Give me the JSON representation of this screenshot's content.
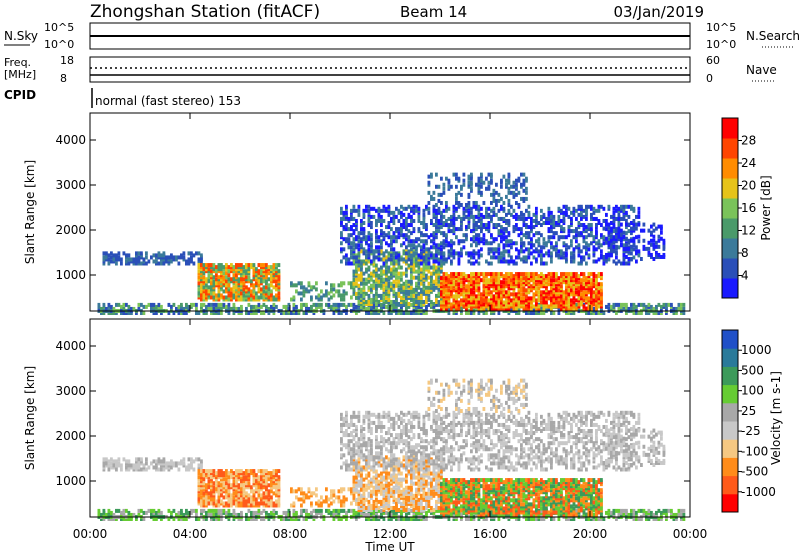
{
  "header": {
    "station": "Zhongshan Station (fitACF)",
    "beam": "Beam 14",
    "date": "03/Jan/2019"
  },
  "top_panels": {
    "nsky_label": "N.Sky",
    "nsky_ticks": [
      "10^5",
      "10^0"
    ],
    "nsearch_label": "N.Search",
    "nsearch_ticks": [
      "10^5",
      "10^0"
    ],
    "freq_label_1": "Freq.",
    "freq_label_2": "[MHz]",
    "freq_ticks": [
      "18",
      "8"
    ],
    "nave_label": "Nave",
    "nave_ticks": [
      "60",
      "0"
    ],
    "cpid_label": "CPID",
    "cpid_text": "normal (fast stereo) 153"
  },
  "colors": {
    "power_scale": [
      "#1a1aff",
      "#2a4fb8",
      "#3b7a9a",
      "#4a9a6a",
      "#7ac35a",
      "#e6c31a",
      "#ff8c00",
      "#ff4500",
      "#ff0000"
    ],
    "velocity_scale": [
      "#ff0000",
      "#ff5a1a",
      "#ff8c1a",
      "#f5c882",
      "#c8c8c8",
      "#a8a8a8",
      "#66cc33",
      "#3c9a5a",
      "#2a7a9a",
      "#2050c8"
    ]
  },
  "chart_data": [
    {
      "type": "heatmap",
      "name": "power",
      "ylabel": "Slant Range [km]",
      "yticks": [
        "1000",
        "2000",
        "3000",
        "4000"
      ],
      "ylim": [
        200,
        4600
      ],
      "colorbar_label": "Power [dB]",
      "colorbar_ticks": [
        "4",
        "8",
        "12",
        "16",
        "20",
        "24",
        "28"
      ],
      "colorbar_range": [
        0,
        30
      ]
    },
    {
      "type": "heatmap",
      "name": "velocity",
      "ylabel": "Slant Range [km]",
      "yticks": [
        "1000",
        "2000",
        "3000",
        "4000"
      ],
      "ylim": [
        200,
        4600
      ],
      "colorbar_label": "Velocity [m s-1]",
      "colorbar_ticks": [
        "1000",
        "500",
        "100",
        "25",
        "-25",
        "-100",
        "-500",
        "-1000"
      ]
    }
  ],
  "time_axis": {
    "xlabel": "Time UT",
    "xticks": [
      "00:00",
      "04:00",
      "08:00",
      "12:00",
      "16:00",
      "20:00",
      "00:00"
    ]
  }
}
